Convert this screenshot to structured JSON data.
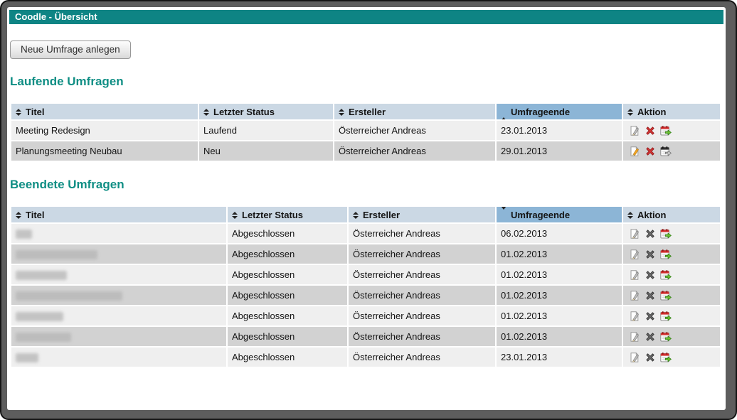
{
  "window": {
    "title": "Coodle - Übersicht"
  },
  "toolbar": {
    "new_survey_label": "Neue Umfrage anlegen"
  },
  "colors": {
    "titlebar_teal": "#0e8484",
    "heading_teal": "#0f8e84",
    "header_bg": "#cbd8e4",
    "header_sorted_bg": "#8cb5d6",
    "row_odd": "#efefef",
    "row_even": "#d2d2d2",
    "delete_red": "#d93636",
    "export_green": "#6fc233",
    "pencil_orange": "#f5a623"
  },
  "running": {
    "heading": "Laufende Umfragen",
    "columns": [
      {
        "label": "Titel",
        "sort": "both"
      },
      {
        "label": "Letzter Status",
        "sort": "both"
      },
      {
        "label": "Ersteller",
        "sort": "both"
      },
      {
        "label": "Umfrageende",
        "sort": "asc"
      },
      {
        "label": "Aktion",
        "sort": "both"
      }
    ],
    "rows": [
      {
        "title": "Meeting Redesign",
        "status": "Laufend",
        "creator": "Österreicher Andreas",
        "end": "23.01.2013",
        "actions": [
          {
            "name": "edit",
            "variant": "edit-gray"
          },
          {
            "name": "delete",
            "variant": "delete-red"
          },
          {
            "name": "export",
            "variant": "export-green"
          }
        ]
      },
      {
        "title": "Planungsmeeting Neubau",
        "status": "Neu",
        "creator": "Österreicher Andreas",
        "end": "29.01.2013",
        "actions": [
          {
            "name": "edit",
            "variant": "edit-orange"
          },
          {
            "name": "delete",
            "variant": "delete-red"
          },
          {
            "name": "export",
            "variant": "export-gray"
          }
        ]
      }
    ]
  },
  "finished": {
    "heading": "Beendete Umfragen",
    "columns": [
      {
        "label": "Titel",
        "sort": "both"
      },
      {
        "label": "Letzter Status",
        "sort": "both"
      },
      {
        "label": "Ersteller",
        "sort": "both"
      },
      {
        "label": "Umfrageende",
        "sort": "desc"
      },
      {
        "label": "Aktion",
        "sort": "both"
      }
    ],
    "rows": [
      {
        "title": null,
        "redacted_width": 23,
        "status": "Abgeschlossen",
        "creator": "Österreicher Andreas",
        "end": "06.02.2013",
        "actions": [
          {
            "name": "edit",
            "variant": "edit-gray"
          },
          {
            "name": "delete",
            "variant": "delete-gray"
          },
          {
            "name": "export",
            "variant": "export-green"
          }
        ]
      },
      {
        "title": null,
        "redacted_width": 115,
        "status": "Abgeschlossen",
        "creator": "Österreicher Andreas",
        "end": "01.02.2013",
        "actions": [
          {
            "name": "edit",
            "variant": "edit-gray"
          },
          {
            "name": "delete",
            "variant": "delete-gray"
          },
          {
            "name": "export",
            "variant": "export-green"
          }
        ]
      },
      {
        "title": null,
        "redacted_width": 72,
        "status": "Abgeschlossen",
        "creator": "Österreicher Andreas",
        "end": "01.02.2013",
        "actions": [
          {
            "name": "edit",
            "variant": "edit-gray"
          },
          {
            "name": "delete",
            "variant": "delete-gray"
          },
          {
            "name": "export",
            "variant": "export-green"
          }
        ]
      },
      {
        "title": null,
        "redacted_width": 150,
        "status": "Abgeschlossen",
        "creator": "Österreicher Andreas",
        "end": "01.02.2013",
        "actions": [
          {
            "name": "edit",
            "variant": "edit-gray"
          },
          {
            "name": "delete",
            "variant": "delete-gray"
          },
          {
            "name": "export",
            "variant": "export-green"
          }
        ]
      },
      {
        "title": null,
        "redacted_width": 67,
        "status": "Abgeschlossen",
        "creator": "Österreicher Andreas",
        "end": "01.02.2013",
        "actions": [
          {
            "name": "edit",
            "variant": "edit-gray"
          },
          {
            "name": "delete",
            "variant": "delete-gray"
          },
          {
            "name": "export",
            "variant": "export-green"
          }
        ]
      },
      {
        "title": null,
        "redacted_width": 78,
        "status": "Abgeschlossen",
        "creator": "Österreicher Andreas",
        "end": "01.02.2013",
        "actions": [
          {
            "name": "edit",
            "variant": "edit-gray"
          },
          {
            "name": "delete",
            "variant": "delete-gray"
          },
          {
            "name": "export",
            "variant": "export-green"
          }
        ]
      },
      {
        "title": null,
        "redacted_width": 32,
        "status": "Abgeschlossen",
        "creator": "Österreicher Andreas",
        "end": "23.01.2013",
        "actions": [
          {
            "name": "edit",
            "variant": "edit-gray"
          },
          {
            "name": "delete",
            "variant": "delete-gray"
          },
          {
            "name": "export",
            "variant": "export-green"
          }
        ]
      }
    ]
  }
}
